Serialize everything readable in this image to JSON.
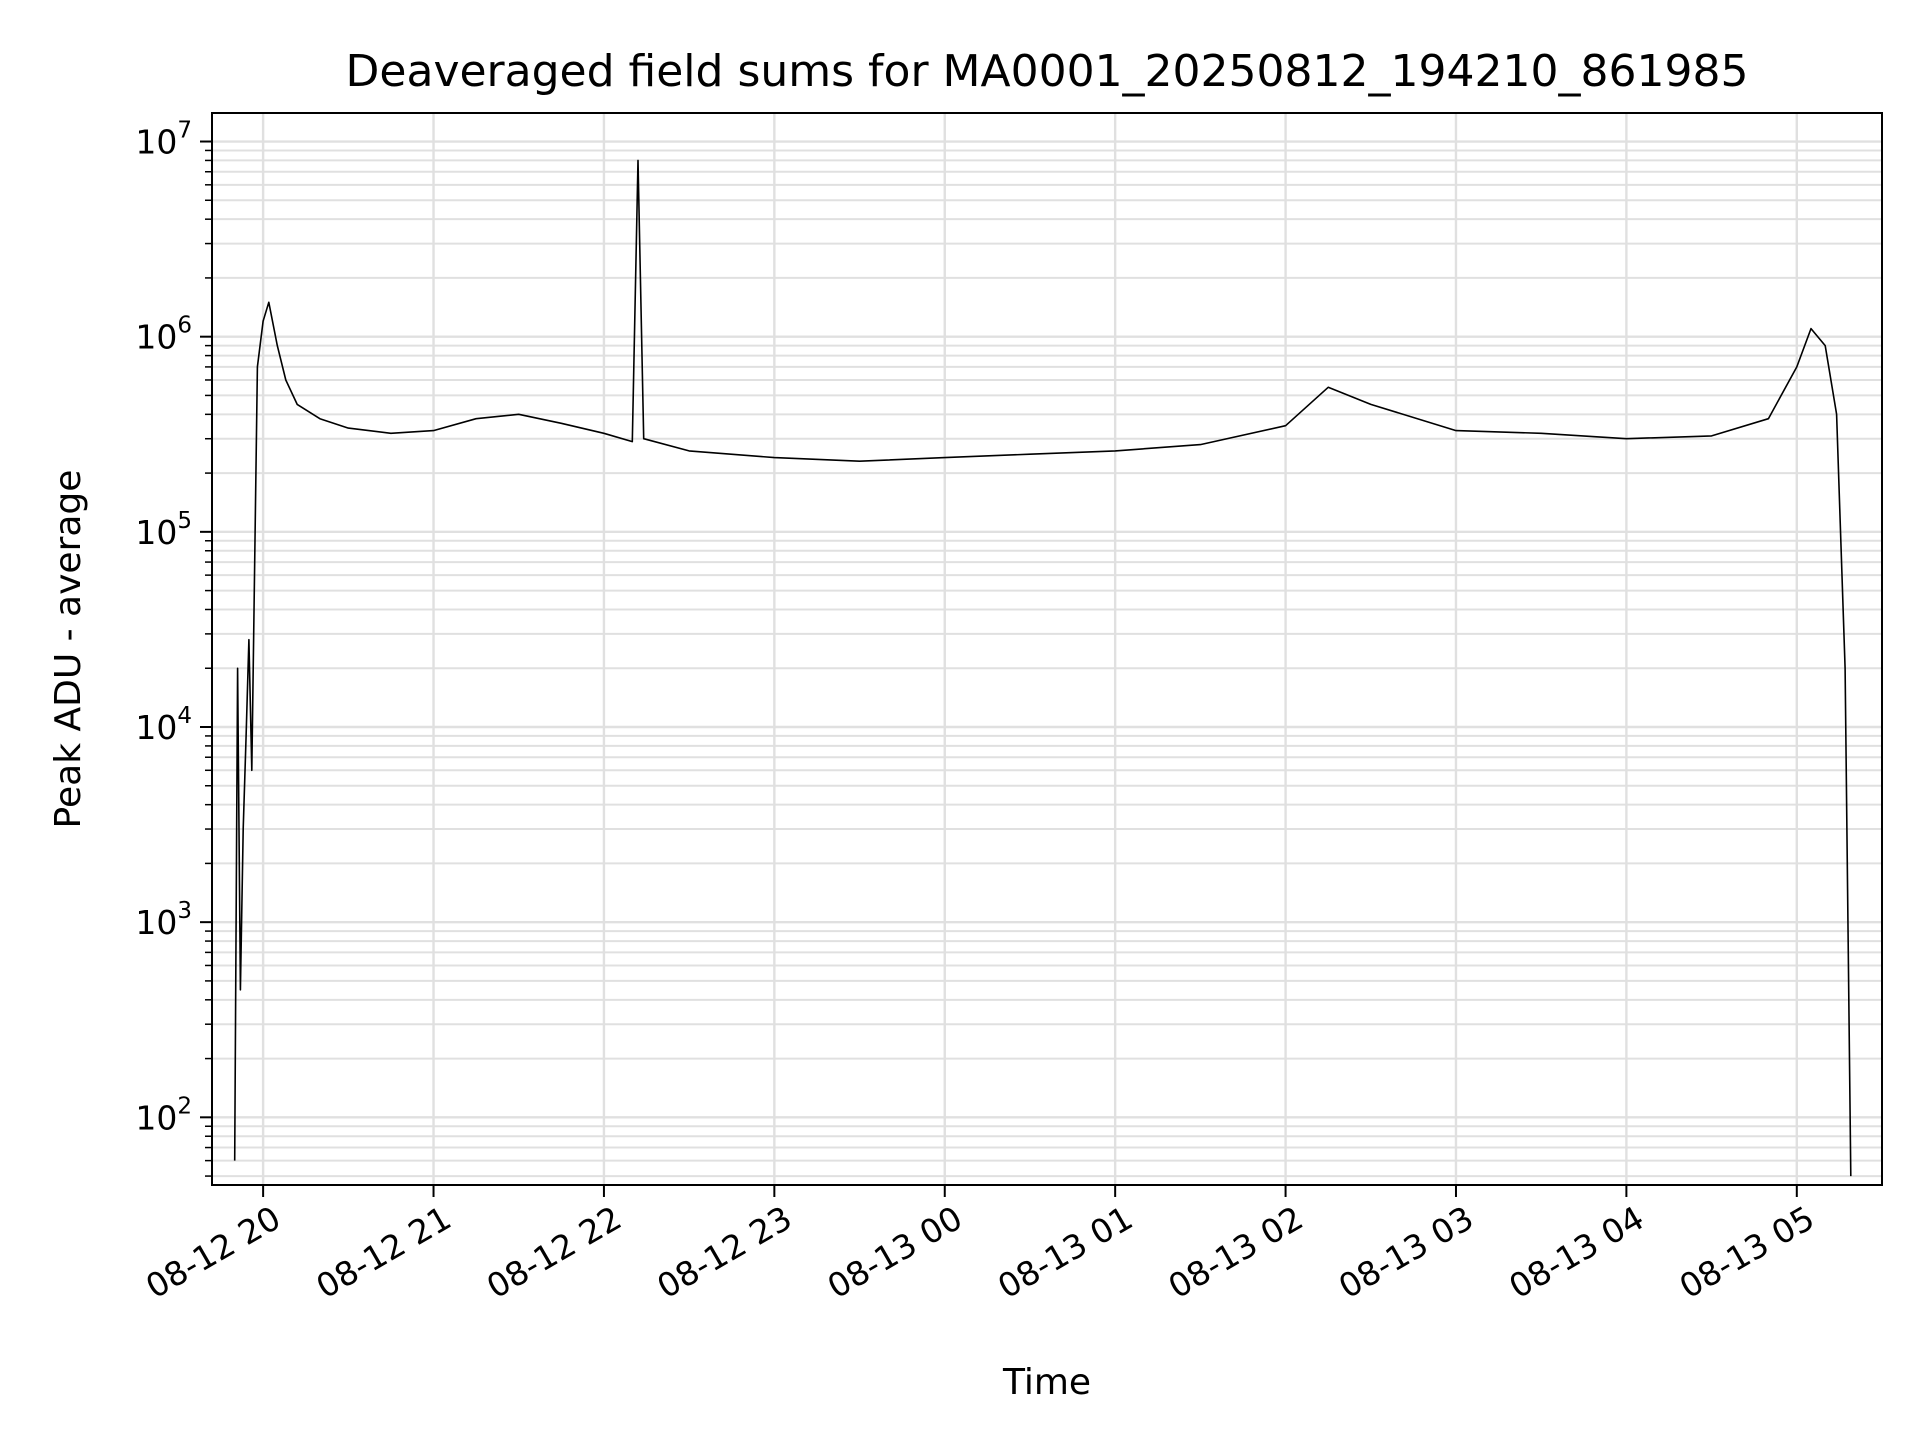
{
  "chart_data": {
    "type": "line",
    "title": "Deaveraged field sums for MA0001_20250812_194210_861985",
    "xlabel": "Time",
    "ylabel": "Peak ADU - average",
    "yscale": "log",
    "xlim": [
      "2025-08-12T19:42",
      "2025-08-13T05:30"
    ],
    "ylim": [
      45,
      14000000
    ],
    "grid": true,
    "line_color": "#000000",
    "grid_color": "#e0e0e0",
    "x_ticks": [
      {
        "label": "08-12 20",
        "value": "2025-08-12T20:00"
      },
      {
        "label": "08-12 21",
        "value": "2025-08-12T21:00"
      },
      {
        "label": "08-12 22",
        "value": "2025-08-12T22:00"
      },
      {
        "label": "08-12 23",
        "value": "2025-08-12T23:00"
      },
      {
        "label": "08-13 00",
        "value": "2025-08-13T00:00"
      },
      {
        "label": "08-13 01",
        "value": "2025-08-13T01:00"
      },
      {
        "label": "08-13 02",
        "value": "2025-08-13T02:00"
      },
      {
        "label": "08-13 03",
        "value": "2025-08-13T03:00"
      },
      {
        "label": "08-13 04",
        "value": "2025-08-13T04:00"
      },
      {
        "label": "08-13 05",
        "value": "2025-08-13T05:00"
      }
    ],
    "y_ticks": [
      {
        "base": "10",
        "exp": "2",
        "value": 100
      },
      {
        "base": "10",
        "exp": "3",
        "value": 1000
      },
      {
        "base": "10",
        "exp": "4",
        "value": 10000
      },
      {
        "base": "10",
        "exp": "5",
        "value": 100000
      },
      {
        "base": "10",
        "exp": "6",
        "value": 1000000
      },
      {
        "base": "10",
        "exp": "7",
        "value": 10000000
      }
    ],
    "series": [
      {
        "x": [
          "2025-08-12T19:50",
          "2025-08-12T19:51",
          "2025-08-12T19:52",
          "2025-08-12T19:53",
          "2025-08-12T19:54",
          "2025-08-12T19:55",
          "2025-08-12T19:56",
          "2025-08-12T19:58",
          "2025-08-12T20:00",
          "2025-08-12T20:02",
          "2025-08-12T20:05",
          "2025-08-12T20:08",
          "2025-08-12T20:12",
          "2025-08-12T20:20",
          "2025-08-12T20:30",
          "2025-08-12T20:45",
          "2025-08-12T21:00",
          "2025-08-12T21:15",
          "2025-08-12T21:30",
          "2025-08-12T21:45",
          "2025-08-12T22:00",
          "2025-08-12T22:10",
          "2025-08-12T22:12",
          "2025-08-12T22:14",
          "2025-08-12T22:30",
          "2025-08-12T23:00",
          "2025-08-12T23:30",
          "2025-08-13T00:00",
          "2025-08-13T00:30",
          "2025-08-13T01:00",
          "2025-08-13T01:30",
          "2025-08-13T02:00",
          "2025-08-13T02:15",
          "2025-08-13T02:30",
          "2025-08-13T03:00",
          "2025-08-13T03:30",
          "2025-08-13T04:00",
          "2025-08-13T04:30",
          "2025-08-13T04:50",
          "2025-08-13T05:00",
          "2025-08-13T05:05",
          "2025-08-13T05:10",
          "2025-08-13T05:14",
          "2025-08-13T05:17",
          "2025-08-13T05:19"
        ],
        "values": [
          60,
          20000,
          450,
          3000,
          9000,
          28000,
          6000,
          700000,
          1200000,
          1500000,
          900000,
          600000,
          450000,
          380000,
          340000,
          320000,
          330000,
          380000,
          400000,
          360000,
          320000,
          290000,
          8000000,
          300000,
          260000,
          240000,
          230000,
          240000,
          250000,
          260000,
          280000,
          350000,
          550000,
          450000,
          330000,
          320000,
          300000,
          310000,
          380000,
          700000,
          1100000,
          900000,
          400000,
          20000,
          50
        ]
      }
    ]
  }
}
